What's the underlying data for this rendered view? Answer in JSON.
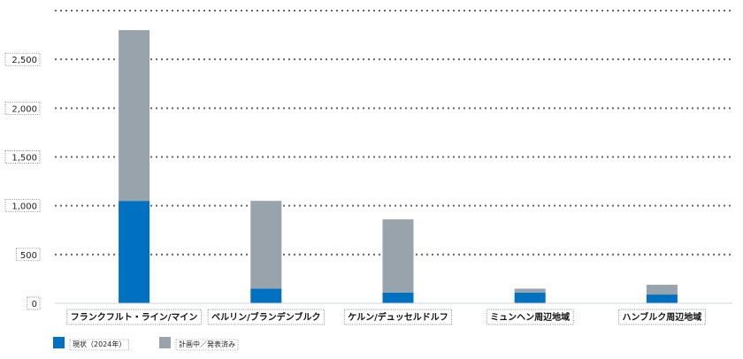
{
  "chart_data": {
    "type": "bar",
    "stacked": true,
    "categories": [
      "フランクフルト・ライン/マイン",
      "ベルリン/ブランデンブルク",
      "ケルン/デュッセルドルフ",
      "ミュンヘン周辺地域",
      "ハンブルク周辺地域"
    ],
    "series": [
      {
        "name": "現状（2024年）",
        "color": "#0070c0",
        "values": [
          1050,
          150,
          110,
          110,
          90
        ]
      },
      {
        "name": "計画中／発表済み",
        "color": "#99a3ac",
        "values": [
          1750,
          900,
          750,
          40,
          100
        ]
      }
    ],
    "yticks": [
      0,
      500,
      1000,
      1500,
      2000,
      2500
    ],
    "ytick_labels": [
      "0",
      "500",
      "1,000",
      "1,500",
      "2,000",
      "2,500"
    ],
    "ylim": [
      0,
      3000
    ],
    "grid": true,
    "legend_position": "bottom-left",
    "title": "",
    "xlabel": "",
    "ylabel": ""
  }
}
